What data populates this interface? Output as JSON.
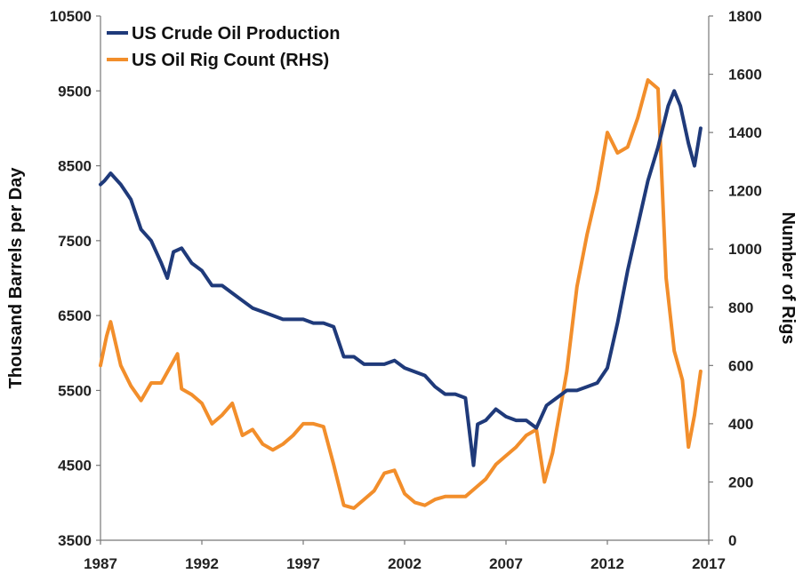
{
  "chart_data": {
    "type": "line",
    "title": "",
    "xlabel": "",
    "ylabel": "Thousand Barrels per Day",
    "y2label": "Number of Rigs",
    "xlim": [
      1987,
      2017
    ],
    "ylim": [
      3500,
      10500
    ],
    "y2lim": [
      0,
      1800
    ],
    "x_ticks": [
      "1987",
      "1992",
      "1997",
      "2002",
      "2007",
      "2012",
      "2017"
    ],
    "y_ticks": [
      "3500",
      "4500",
      "5500",
      "6500",
      "7500",
      "8500",
      "9500",
      "10500"
    ],
    "y2_ticks": [
      "0",
      "200",
      "400",
      "600",
      "800",
      "1000",
      "1200",
      "1400",
      "1600",
      "1800"
    ],
    "grid": false,
    "legend_position": "top-left",
    "series": [
      {
        "name": "US Crude Oil Production",
        "axis": "left",
        "color": "#1f3a7a",
        "x": [
          1987.0,
          1987.2,
          1987.5,
          1988.0,
          1988.5,
          1989.0,
          1989.5,
          1990.0,
          1990.3,
          1990.6,
          1991.0,
          1991.5,
          1992.0,
          1992.5,
          1993.0,
          1993.5,
          1994.0,
          1994.5,
          1995.0,
          1995.5,
          1996.0,
          1996.5,
          1997.0,
          1997.5,
          1998.0,
          1998.5,
          1999.0,
          1999.5,
          2000.0,
          2000.5,
          2001.0,
          2001.5,
          2002.0,
          2002.5,
          2003.0,
          2003.5,
          2004.0,
          2004.5,
          2005.0,
          2005.4,
          2005.6,
          2006.0,
          2006.5,
          2007.0,
          2007.5,
          2008.0,
          2008.5,
          2009.0,
          2009.5,
          2010.0,
          2010.5,
          2011.0,
          2011.5,
          2012.0,
          2012.5,
          2013.0,
          2013.5,
          2014.0,
          2014.5,
          2015.0,
          2015.3,
          2015.6,
          2016.0,
          2016.3,
          2016.6
        ],
        "values": [
          8250,
          8300,
          8400,
          8250,
          8050,
          7650,
          7500,
          7200,
          7000,
          7350,
          7400,
          7200,
          7100,
          6900,
          6900,
          6800,
          6700,
          6600,
          6550,
          6500,
          6450,
          6450,
          6450,
          6400,
          6400,
          6350,
          5950,
          5950,
          5850,
          5850,
          5850,
          5900,
          5800,
          5750,
          5700,
          5550,
          5450,
          5450,
          5400,
          4500,
          5050,
          5100,
          5250,
          5150,
          5100,
          5100,
          5000,
          5300,
          5400,
          5500,
          5500,
          5550,
          5600,
          5800,
          6400,
          7100,
          7700,
          8300,
          8750,
          9300,
          9500,
          9300,
          8800,
          8500,
          9000
        ]
      },
      {
        "name": "US Oil Rig Count (RHS)",
        "axis": "right",
        "color": "#f28e2b",
        "x": [
          1987.0,
          1987.3,
          1987.5,
          1988.0,
          1988.5,
          1989.0,
          1989.5,
          1990.0,
          1990.4,
          1990.8,
          1991.0,
          1991.5,
          1992.0,
          1992.5,
          1993.0,
          1993.5,
          1994.0,
          1994.5,
          1995.0,
          1995.5,
          1996.0,
          1996.5,
          1997.0,
          1997.5,
          1998.0,
          1998.5,
          1999.0,
          1999.5,
          2000.0,
          2000.5,
          2001.0,
          2001.5,
          2002.0,
          2002.5,
          2003.0,
          2003.5,
          2004.0,
          2004.5,
          2005.0,
          2005.5,
          2006.0,
          2006.5,
          2007.0,
          2007.5,
          2008.0,
          2008.5,
          2008.9,
          2009.3,
          2009.6,
          2010.0,
          2010.5,
          2011.0,
          2011.5,
          2012.0,
          2012.5,
          2013.0,
          2013.5,
          2014.0,
          2014.5,
          2014.9,
          2015.3,
          2015.7,
          2016.0,
          2016.3,
          2016.6
        ],
        "values": [
          600,
          700,
          750,
          600,
          530,
          480,
          540,
          540,
          590,
          640,
          520,
          500,
          470,
          400,
          430,
          470,
          360,
          380,
          330,
          310,
          330,
          360,
          400,
          400,
          390,
          260,
          120,
          110,
          140,
          170,
          230,
          240,
          160,
          130,
          120,
          140,
          150,
          150,
          150,
          180,
          210,
          260,
          290,
          320,
          360,
          380,
          200,
          300,
          420,
          580,
          870,
          1050,
          1200,
          1400,
          1330,
          1350,
          1450,
          1580,
          1550,
          900,
          650,
          550,
          320,
          430,
          580
        ]
      }
    ]
  }
}
